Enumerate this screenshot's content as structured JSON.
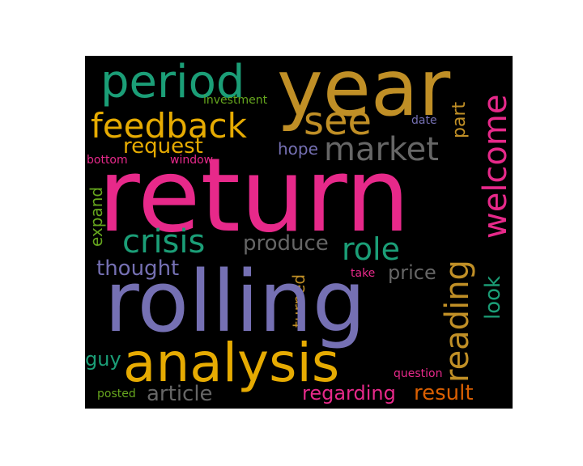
{
  "colors": {
    "pink": "#e7298a",
    "gold": "#c08f26",
    "yellow": "#e6ab02",
    "teal": "#1b9e77",
    "purple": "#7570b3",
    "gray": "#666666",
    "green": "#66a61e",
    "orange": "#d95f02"
  },
  "words": {
    "year": "year",
    "period": "period",
    "see": "see",
    "feedback": "feedback",
    "market": "market",
    "welcome": "welcome",
    "investment": "investment",
    "date": "date",
    "part": "part",
    "request": "request",
    "hope": "hope",
    "bottom": "bottom",
    "window": "window",
    "return": "return",
    "expand": "expand",
    "crisis": "crisis",
    "produce": "produce",
    "role": "role",
    "reading": "reading",
    "look": "look",
    "thought": "thought",
    "take": "take",
    "price": "price",
    "turned": "turned",
    "rolling": "rolling",
    "analysis": "analysis",
    "guy": "guy",
    "question": "question",
    "posted": "posted",
    "article": "article",
    "regarding": "regarding",
    "result": "result"
  }
}
